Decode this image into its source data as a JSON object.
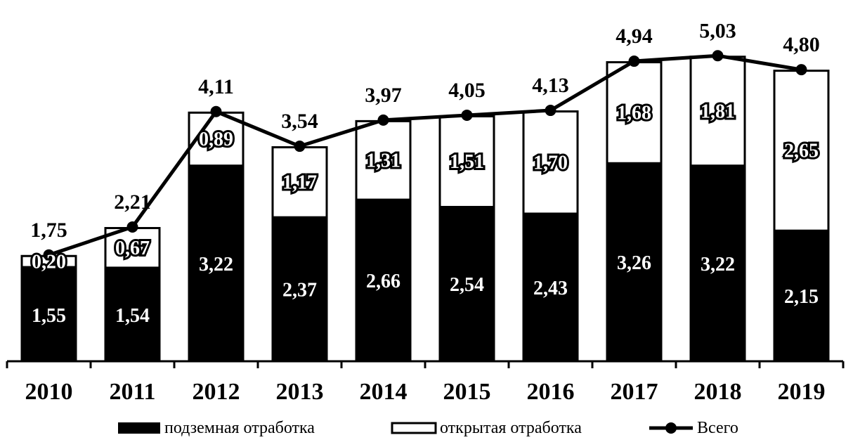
{
  "chart_data": {
    "type": "bar",
    "stacked": true,
    "categories": [
      "2010",
      "2011",
      "2012",
      "2013",
      "2014",
      "2015",
      "2016",
      "2017",
      "2018",
      "2019"
    ],
    "series": [
      {
        "name": "подземная отработка",
        "values": [
          1.55,
          1.54,
          3.22,
          2.37,
          2.66,
          2.54,
          2.43,
          3.26,
          3.22,
          2.15
        ],
        "labels": [
          "1,55",
          "1,54",
          "3,22",
          "2,37",
          "2,66",
          "2,54",
          "2,43",
          "3,26",
          "3,22",
          "2,15"
        ],
        "color": "#000000"
      },
      {
        "name": "открытая отработка",
        "values": [
          0.2,
          0.67,
          0.89,
          1.17,
          1.31,
          1.51,
          1.7,
          1.68,
          1.81,
          2.65
        ],
        "labels": [
          "0,20",
          "0,67",
          "0,89",
          "1,17",
          "1,31",
          "1,51",
          "1,70",
          "1,68",
          "1,81",
          "2,65"
        ],
        "color": "#ffffff"
      },
      {
        "name": "Всего",
        "type": "line",
        "values": [
          1.75,
          2.21,
          4.11,
          3.54,
          3.97,
          4.05,
          4.13,
          4.94,
          5.03,
          4.8
        ],
        "labels": [
          "1,75",
          "2,21",
          "4,11",
          "3,54",
          "3,97",
          "4,05",
          "4,13",
          "4,94",
          "5,03",
          "4,80"
        ],
        "color": "#000000"
      }
    ],
    "ylim": [
      0,
      5.6
    ],
    "grid": false,
    "legend_position": "bottom"
  }
}
